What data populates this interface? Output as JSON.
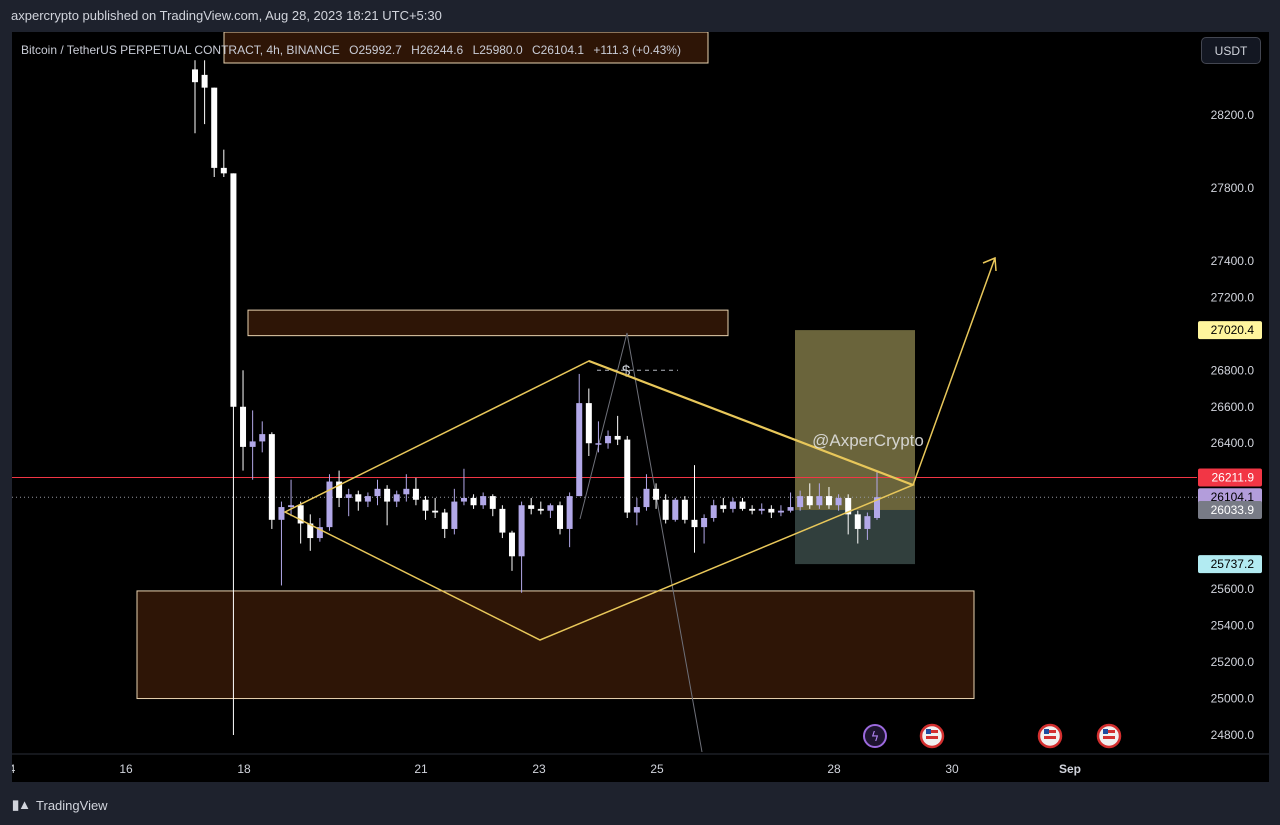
{
  "header": {
    "published_by": "axpercrypto published on TradingView.com, Aug 28, 2023 18:21 UTC+5:30"
  },
  "symbol": {
    "name": "Bitcoin / TetherUS PERPETUAL CONTRACT, 4h, BINANCE",
    "open": "O25992.7",
    "high": "H26244.6",
    "low": "L25980.0",
    "close": "C26104.1",
    "change": "+111.3 (+0.43%)"
  },
  "toolbar": {
    "currency": "USDT"
  },
  "footer": {
    "brand": "TradingView"
  },
  "watermark": "@AxperCrypto",
  "colors": {
    "background": "#000000",
    "candle_up": "#b2a8e8",
    "candle_down": "#ffffff",
    "pattern": "#e8c75a",
    "zone_fill": "#2e1506",
    "price_line": "#f23645"
  },
  "chart_data": {
    "type": "candlestick",
    "timeframe": "4h",
    "ylim": [
      24700,
      28500
    ],
    "y_ticks": [
      24800,
      25000,
      25200,
      25400,
      25600,
      25800,
      26000,
      26200,
      26400,
      26600,
      26800,
      27000,
      27200,
      27400,
      27600,
      27800,
      28000,
      28200,
      28400
    ],
    "y_tick_labels": [
      "24800.0",
      "25000.0",
      "25200.0",
      "25400.0",
      "25600.0",
      "",
      "",
      "",
      "26400.0",
      "26600.0",
      "26800.0",
      "",
      "27200.0",
      "27400.0",
      "",
      "27800.0",
      "",
      "28200.0",
      ""
    ],
    "x_ticks": [
      "4",
      "16",
      "18",
      "21",
      "23",
      "25",
      "28",
      "30",
      "Sep"
    ],
    "price_markers": [
      {
        "label": "27020.4",
        "value": 27020.4,
        "bg": "#fff59d",
        "fg": "#000000"
      },
      {
        "label": "26211.9",
        "value": 26211.9,
        "bg": "#f23645",
        "fg": "#ffffff"
      },
      {
        "label": "26104.1",
        "value": 26104.1,
        "bg": "#b39ddb",
        "fg": "#000000"
      },
      {
        "label": "26033.9",
        "value": 26033.9,
        "bg": "#787b86",
        "fg": "#ffffff"
      },
      {
        "label": "25737.2",
        "value": 25737.2,
        "bg": "#b2ebf2",
        "fg": "#000000"
      }
    ],
    "candles": [
      {
        "o": 28450,
        "c": 28380,
        "h": 28500,
        "l": 28100
      },
      {
        "o": 28420,
        "c": 28350,
        "h": 28500,
        "l": 28150
      },
      {
        "o": 28350,
        "c": 27910,
        "h": 28350,
        "l": 27860
      },
      {
        "o": 27910,
        "c": 27880,
        "h": 28010,
        "l": 27860
      },
      {
        "o": 27880,
        "c": 26600,
        "h": 27880,
        "l": 24800
      },
      {
        "o": 26600,
        "c": 26380,
        "h": 26800,
        "l": 26250
      },
      {
        "o": 26380,
        "c": 26410,
        "h": 26580,
        "l": 26200
      },
      {
        "o": 26410,
        "c": 26450,
        "h": 26520,
        "l": 26350
      },
      {
        "o": 26450,
        "c": 25980,
        "h": 26460,
        "l": 25930
      },
      {
        "o": 25980,
        "c": 26050,
        "h": 26080,
        "l": 25620
      },
      {
        "o": 26050,
        "c": 26060,
        "h": 26200,
        "l": 26000
      },
      {
        "o": 26060,
        "c": 25960,
        "h": 26080,
        "l": 25850
      },
      {
        "o": 25960,
        "c": 25880,
        "h": 26010,
        "l": 25810
      },
      {
        "o": 25880,
        "c": 25940,
        "h": 25990,
        "l": 25860
      },
      {
        "o": 25940,
        "c": 26190,
        "h": 26230,
        "l": 25920
      },
      {
        "o": 26190,
        "c": 26100,
        "h": 26250,
        "l": 26050
      },
      {
        "o": 26100,
        "c": 26120,
        "h": 26150,
        "l": 26000
      },
      {
        "o": 26120,
        "c": 26080,
        "h": 26140,
        "l": 26030
      },
      {
        "o": 26080,
        "c": 26110,
        "h": 26130,
        "l": 26050
      },
      {
        "o": 26110,
        "c": 26150,
        "h": 26200,
        "l": 26060
      },
      {
        "o": 26150,
        "c": 26080,
        "h": 26170,
        "l": 25950
      },
      {
        "o": 26080,
        "c": 26120,
        "h": 26140,
        "l": 26050
      },
      {
        "o": 26120,
        "c": 26150,
        "h": 26230,
        "l": 26080
      },
      {
        "o": 26150,
        "c": 26090,
        "h": 26210,
        "l": 26060
      },
      {
        "o": 26090,
        "c": 26030,
        "h": 26110,
        "l": 25980
      },
      {
        "o": 26030,
        "c": 26020,
        "h": 26100,
        "l": 25990
      },
      {
        "o": 26020,
        "c": 25930,
        "h": 26040,
        "l": 25880
      },
      {
        "o": 25930,
        "c": 26080,
        "h": 26150,
        "l": 25900
      },
      {
        "o": 26080,
        "c": 26100,
        "h": 26260,
        "l": 26060
      },
      {
        "o": 26100,
        "c": 26060,
        "h": 26120,
        "l": 26040
      },
      {
        "o": 26060,
        "c": 26110,
        "h": 26130,
        "l": 26040
      },
      {
        "o": 26110,
        "c": 26040,
        "h": 26120,
        "l": 26000
      },
      {
        "o": 26040,
        "c": 25910,
        "h": 26060,
        "l": 25880
      },
      {
        "o": 25910,
        "c": 25780,
        "h": 25920,
        "l": 25700
      },
      {
        "o": 25780,
        "c": 26060,
        "h": 26080,
        "l": 25580
      },
      {
        "o": 26060,
        "c": 26040,
        "h": 26100,
        "l": 26010
      },
      {
        "o": 26040,
        "c": 26030,
        "h": 26080,
        "l": 26010
      },
      {
        "o": 26030,
        "c": 26060,
        "h": 26070,
        "l": 25990
      },
      {
        "o": 26060,
        "c": 25930,
        "h": 26080,
        "l": 25900
      },
      {
        "o": 25930,
        "c": 26110,
        "h": 26130,
        "l": 25830
      },
      {
        "o": 26110,
        "c": 26620,
        "h": 26780,
        "l": 26110
      },
      {
        "o": 26620,
        "c": 26400,
        "h": 26700,
        "l": 26330
      },
      {
        "o": 26400,
        "c": 26400,
        "h": 26520,
        "l": 26350
      },
      {
        "o": 26400,
        "c": 26440,
        "h": 26470,
        "l": 26370
      },
      {
        "o": 26440,
        "c": 26420,
        "h": 26550,
        "l": 26390
      },
      {
        "o": 26420,
        "c": 26020,
        "h": 26440,
        "l": 25990
      },
      {
        "o": 26020,
        "c": 26050,
        "h": 26100,
        "l": 25950
      },
      {
        "o": 26050,
        "c": 26150,
        "h": 26230,
        "l": 26030
      },
      {
        "o": 26150,
        "c": 26090,
        "h": 26180,
        "l": 26040
      },
      {
        "o": 26090,
        "c": 25980,
        "h": 26120,
        "l": 25960
      },
      {
        "o": 25980,
        "c": 26090,
        "h": 26100,
        "l": 25970
      },
      {
        "o": 26090,
        "c": 25980,
        "h": 26110,
        "l": 25960
      },
      {
        "o": 25980,
        "c": 25940,
        "h": 26280,
        "l": 25800
      },
      {
        "o": 25940,
        "c": 25990,
        "h": 26010,
        "l": 25850
      },
      {
        "o": 25990,
        "c": 26060,
        "h": 26090,
        "l": 25970
      },
      {
        "o": 26060,
        "c": 26040,
        "h": 26100,
        "l": 26020
      },
      {
        "o": 26040,
        "c": 26080,
        "h": 26100,
        "l": 26020
      },
      {
        "o": 26080,
        "c": 26040,
        "h": 26100,
        "l": 26030
      },
      {
        "o": 26040,
        "c": 26030,
        "h": 26060,
        "l": 26010
      },
      {
        "o": 26030,
        "c": 26040,
        "h": 26070,
        "l": 26010
      },
      {
        "o": 26040,
        "c": 26020,
        "h": 26060,
        "l": 25990
      },
      {
        "o": 26020,
        "c": 26030,
        "h": 26060,
        "l": 26000
      },
      {
        "o": 26030,
        "c": 26050,
        "h": 26130,
        "l": 26020
      },
      {
        "o": 26050,
        "c": 26110,
        "h": 26140,
        "l": 26030
      },
      {
        "o": 26110,
        "c": 26060,
        "h": 26180,
        "l": 26040
      },
      {
        "o": 26060,
        "c": 26110,
        "h": 26180,
        "l": 26040
      },
      {
        "o": 26110,
        "c": 26060,
        "h": 26160,
        "l": 26040
      },
      {
        "o": 26060,
        "c": 26100,
        "h": 26120,
        "l": 26030
      },
      {
        "o": 26100,
        "c": 26010,
        "h": 26120,
        "l": 25900
      },
      {
        "o": 26010,
        "c": 25930,
        "h": 26030,
        "l": 25850
      },
      {
        "o": 25930,
        "c": 26000,
        "h": 26020,
        "l": 25870
      },
      {
        "o": 25990,
        "c": 26104,
        "h": 26245,
        "l": 25980
      }
    ],
    "zones": [
      {
        "name": "supply-zone",
        "from": 26990,
        "to": 27130
      },
      {
        "name": "demand-zone",
        "from": 25000,
        "to": 25590
      }
    ],
    "long_position": {
      "entry": 26033.9,
      "target": 27020.4,
      "stop": 25737.2
    },
    "pattern": "diamond",
    "target_arrow_end": 27380
  }
}
